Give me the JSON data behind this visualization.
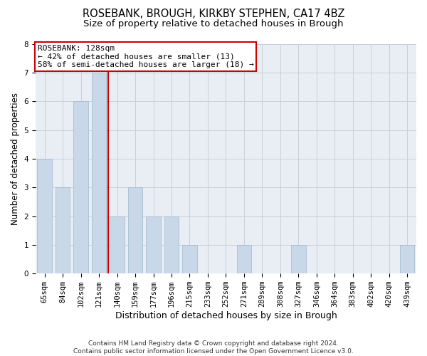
{
  "title": "ROSEBANK, BROUGH, KIRKBY STEPHEN, CA17 4BZ",
  "subtitle": "Size of property relative to detached houses in Brough",
  "xlabel": "Distribution of detached houses by size in Brough",
  "ylabel": "Number of detached properties",
  "categories": [
    "65sqm",
    "84sqm",
    "102sqm",
    "121sqm",
    "140sqm",
    "159sqm",
    "177sqm",
    "196sqm",
    "215sqm",
    "233sqm",
    "252sqm",
    "271sqm",
    "289sqm",
    "308sqm",
    "327sqm",
    "346sqm",
    "364sqm",
    "383sqm",
    "402sqm",
    "420sqm",
    "439sqm"
  ],
  "values": [
    4,
    3,
    6,
    7,
    2,
    3,
    2,
    2,
    1,
    0,
    0,
    1,
    0,
    0,
    1,
    0,
    0,
    0,
    0,
    0,
    1
  ],
  "bar_color": "#c8d8e8",
  "bar_edgecolor": "#a0b8cc",
  "vline_x": 3.5,
  "vline_color": "#cc0000",
  "annotation_text": "ROSEBANK: 128sqm\n← 42% of detached houses are smaller (13)\n58% of semi-detached houses are larger (18) →",
  "annotation_box_edgecolor": "#cc0000",
  "annotation_box_facecolor": "#ffffff",
  "ylim": [
    0,
    8
  ],
  "yticks": [
    0,
    1,
    2,
    3,
    4,
    5,
    6,
    7,
    8
  ],
  "grid_color": "#c8d0dc",
  "bg_color": "#e8eef4",
  "footer": "Contains HM Land Registry data © Crown copyright and database right 2024.\nContains public sector information licensed under the Open Government Licence v3.0.",
  "title_fontsize": 10.5,
  "subtitle_fontsize": 9.5,
  "xlabel_fontsize": 9,
  "ylabel_fontsize": 8.5,
  "tick_fontsize": 7.5,
  "footer_fontsize": 6.5,
  "annot_fontsize": 8
}
